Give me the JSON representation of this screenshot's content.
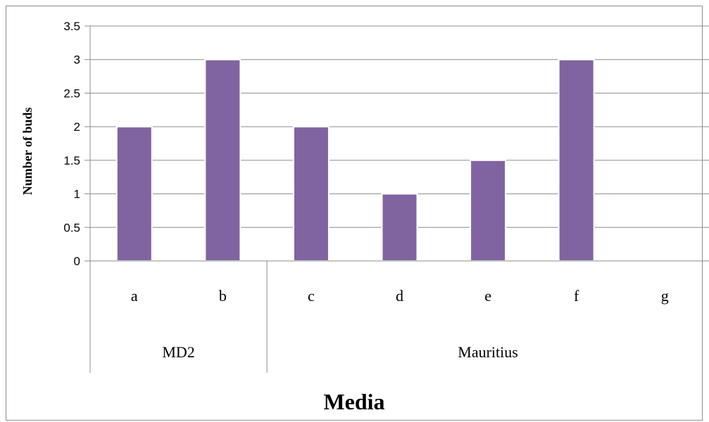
{
  "chart_data": {
    "type": "bar",
    "ylabel": "Number of buds",
    "xlabel": "Media",
    "ylim": [
      0,
      3.5
    ],
    "yticks": [
      "0",
      "0.5",
      "1",
      "1.5",
      "2",
      "2.5",
      "3",
      "3.5"
    ],
    "categories": [
      "a",
      "b",
      "c",
      "d",
      "e",
      "f",
      "g"
    ],
    "values": [
      2,
      3,
      2,
      1,
      1.5,
      3,
      0
    ],
    "groups": [
      {
        "label": "MD2",
        "categories": [
          "a",
          "b"
        ]
      },
      {
        "label": "Mauritius",
        "categories": [
          "c",
          "d",
          "e",
          "f",
          "g"
        ]
      }
    ],
    "grid": true,
    "bar_color": "#8064a2",
    "legend": "none"
  }
}
